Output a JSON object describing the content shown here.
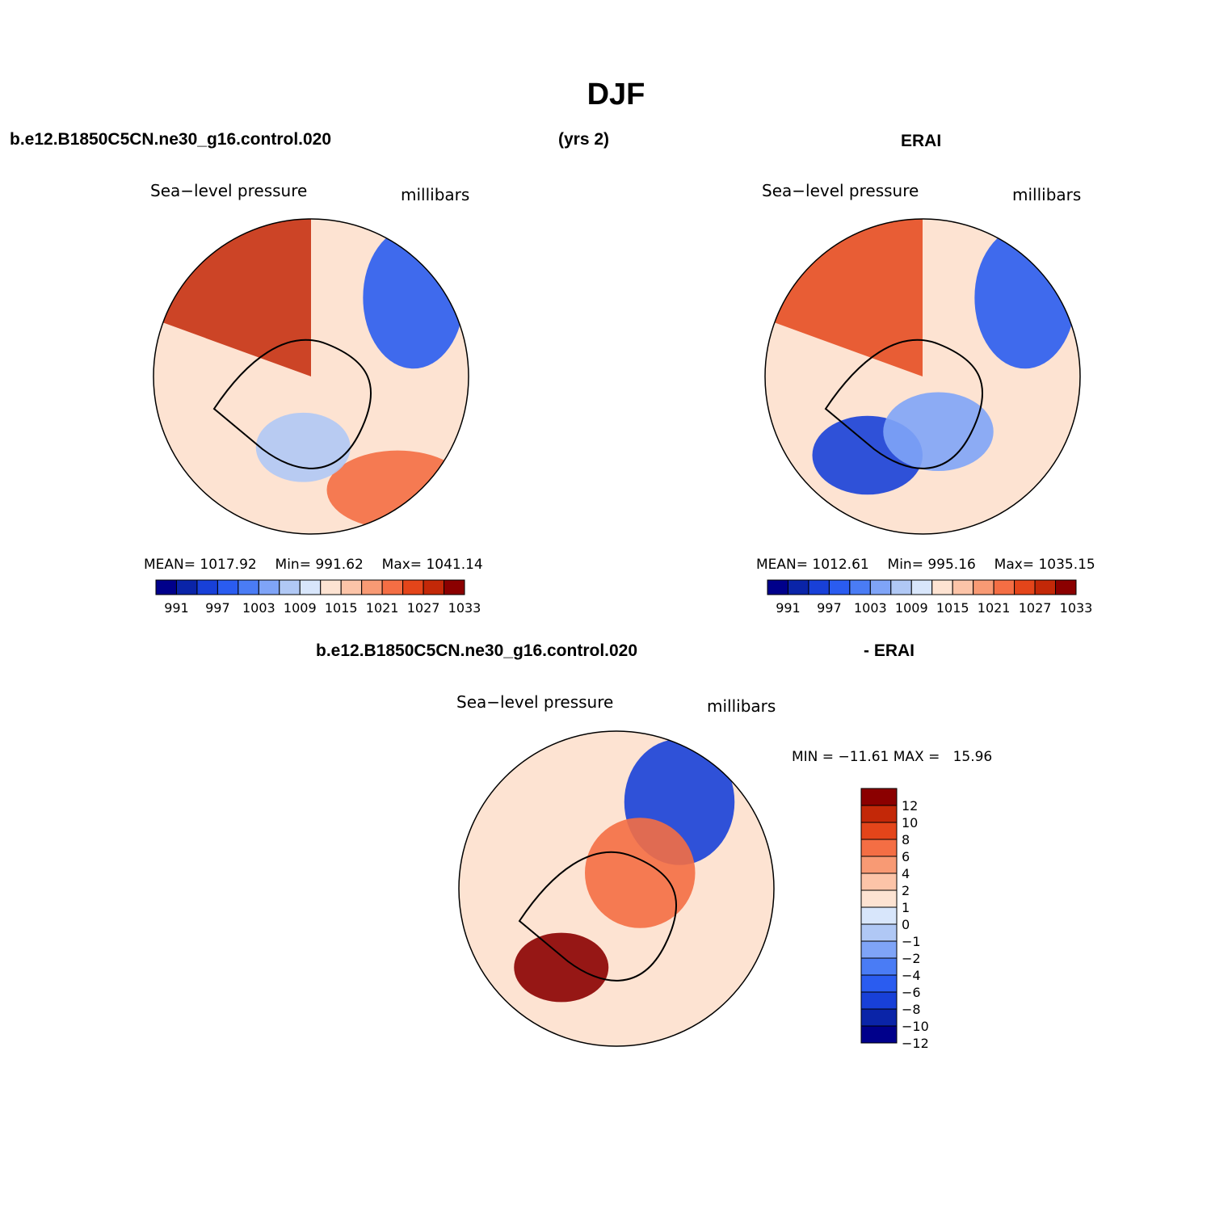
{
  "figure": {
    "season": "DJF",
    "case_name": "b.e12.B1850C5CN.ne30_g16.control.020",
    "years": "(yrs 2)",
    "obs_name": "ERAI",
    "diff_label": "- ERAI"
  },
  "chart_data": [
    {
      "type": "heatmap",
      "projection": "polar-stereographic",
      "title": "Sea−level pressure",
      "units": "millibars",
      "stats": {
        "mean": "1017.92",
        "min": "991.62",
        "max": "1041.14"
      },
      "stats_labels": {
        "mean": "MEAN=",
        "min": "Min=",
        "max": "Max="
      },
      "colorbar": {
        "levels": [
          991,
          994,
          997,
          1000,
          1003,
          1006,
          1009,
          1012,
          1015,
          1018,
          1021,
          1024,
          1027,
          1030,
          1033
        ],
        "tick_labels": [
          "991",
          "997",
          "1003",
          "1009",
          "1015",
          "1021",
          "1027",
          "1033"
        ]
      },
      "regions": [
        {
          "type": "sector",
          "from": 290,
          "to": 360,
          "level": 1030
        },
        {
          "type": "blob",
          "cx": 0.65,
          "cy": -0.5,
          "rx": 0.32,
          "ry": 0.45,
          "level": 1000
        },
        {
          "type": "blob",
          "cx": 0.55,
          "cy": 0.72,
          "rx": 0.45,
          "ry": 0.25,
          "level": 1024
        },
        {
          "type": "blob",
          "cx": -0.05,
          "cy": 0.45,
          "rx": 0.3,
          "ry": 0.22,
          "level": 1009
        }
      ]
    },
    {
      "type": "heatmap",
      "projection": "polar-stereographic",
      "title": "Sea−level pressure",
      "units": "millibars",
      "stats": {
        "mean": "1012.61",
        "min": "995.16",
        "max": "1035.15"
      },
      "stats_labels": {
        "mean": "MEAN=",
        "min": "Min=",
        "max": "Max="
      },
      "colorbar": {
        "levels": [
          991,
          994,
          997,
          1000,
          1003,
          1006,
          1009,
          1012,
          1015,
          1018,
          1021,
          1024,
          1027,
          1030,
          1033
        ],
        "tick_labels": [
          "991",
          "997",
          "1003",
          "1009",
          "1015",
          "1021",
          "1027",
          "1033"
        ]
      },
      "regions": [
        {
          "type": "sector",
          "from": 290,
          "to": 360,
          "level": 1027
        },
        {
          "type": "blob",
          "cx": 0.65,
          "cy": -0.5,
          "rx": 0.32,
          "ry": 0.45,
          "level": 1000
        },
        {
          "type": "blob",
          "cx": -0.35,
          "cy": 0.5,
          "rx": 0.35,
          "ry": 0.25,
          "level": 997
        },
        {
          "type": "blob",
          "cx": 0.1,
          "cy": 0.35,
          "rx": 0.35,
          "ry": 0.25,
          "level": 1006
        }
      ]
    },
    {
      "type": "heatmap",
      "projection": "polar-stereographic",
      "title": "Sea−level pressure",
      "units": "millibars",
      "min_max_text": "MIN = −11.61 MAX =   15.96",
      "colorbar": {
        "levels": [
          -12,
          -10,
          -8,
          -6,
          -4,
          -2,
          -1,
          0,
          1,
          2,
          4,
          6,
          8,
          10,
          12
        ],
        "tick_labels": [
          "12",
          "10",
          "8",
          "6",
          "4",
          "2",
          "1",
          "0",
          "−1",
          "−2",
          "−4",
          "−6",
          "−8",
          "−10",
          "−12"
        ]
      },
      "regions": [
        {
          "type": "blob",
          "cx": 0.4,
          "cy": -0.55,
          "rx": 0.35,
          "ry": 0.4,
          "level": -8
        },
        {
          "type": "blob",
          "cx": -0.35,
          "cy": 0.5,
          "rx": 0.3,
          "ry": 0.22,
          "level": 12
        },
        {
          "type": "blob",
          "cx": 0.15,
          "cy": -0.1,
          "rx": 0.35,
          "ry": 0.35,
          "level": 6
        }
      ]
    }
  ]
}
